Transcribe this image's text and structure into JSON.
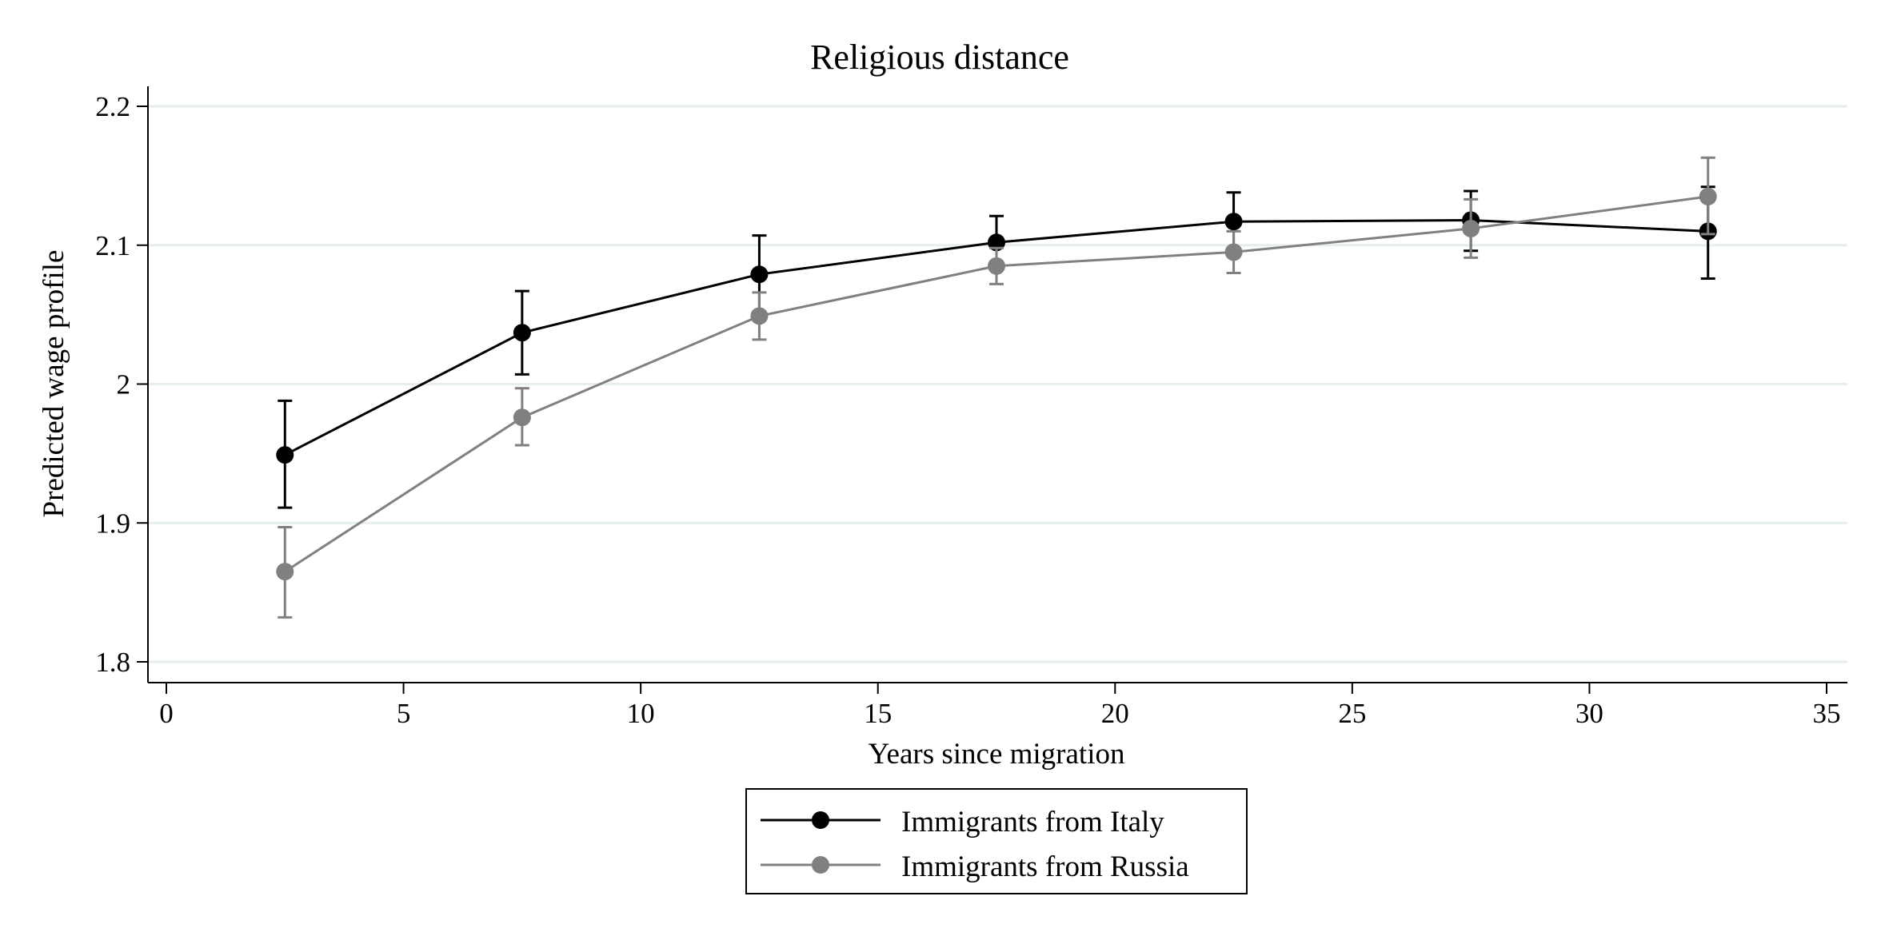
{
  "chart_data": {
    "type": "line",
    "title": "Religious distance",
    "xlabel": "Years since migration",
    "ylabel": "Predicted wage profile",
    "xlim": [
      0,
      35
    ],
    "ylim": [
      1.8,
      2.2
    ],
    "xticks": [
      0,
      5,
      10,
      15,
      20,
      25,
      30,
      35
    ],
    "yticks": [
      1.8,
      1.9,
      2,
      2.1,
      2.2
    ],
    "xtick_labels": [
      "0",
      "5",
      "10",
      "15",
      "20",
      "25",
      "30",
      "35"
    ],
    "ytick_labels": [
      "1.8",
      "1.9",
      "2",
      "2.1",
      "2.2"
    ],
    "grid": true,
    "legend_position": "bottom-center",
    "x": [
      2.5,
      7.5,
      12.5,
      17.5,
      22.5,
      27.5,
      32.5
    ],
    "series": [
      {
        "name": "Immigrants from Italy",
        "color": "#000000",
        "values": [
          1.949,
          2.037,
          2.079,
          2.102,
          2.117,
          2.118,
          2.11
        ],
        "ci_low": [
          1.911,
          2.007,
          2.052,
          2.083,
          2.097,
          2.096,
          2.076
        ],
        "ci_high": [
          1.988,
          2.067,
          2.107,
          2.121,
          2.138,
          2.139,
          2.142
        ]
      },
      {
        "name": "Immigrants from Russia",
        "color": "#808080",
        "values": [
          1.865,
          1.976,
          2.049,
          2.085,
          2.095,
          2.112,
          2.135
        ],
        "ci_low": [
          1.832,
          1.956,
          2.032,
          2.072,
          2.08,
          2.091,
          2.108
        ],
        "ci_high": [
          1.897,
          1.997,
          2.066,
          2.098,
          2.11,
          2.133,
          2.163
        ]
      }
    ]
  }
}
